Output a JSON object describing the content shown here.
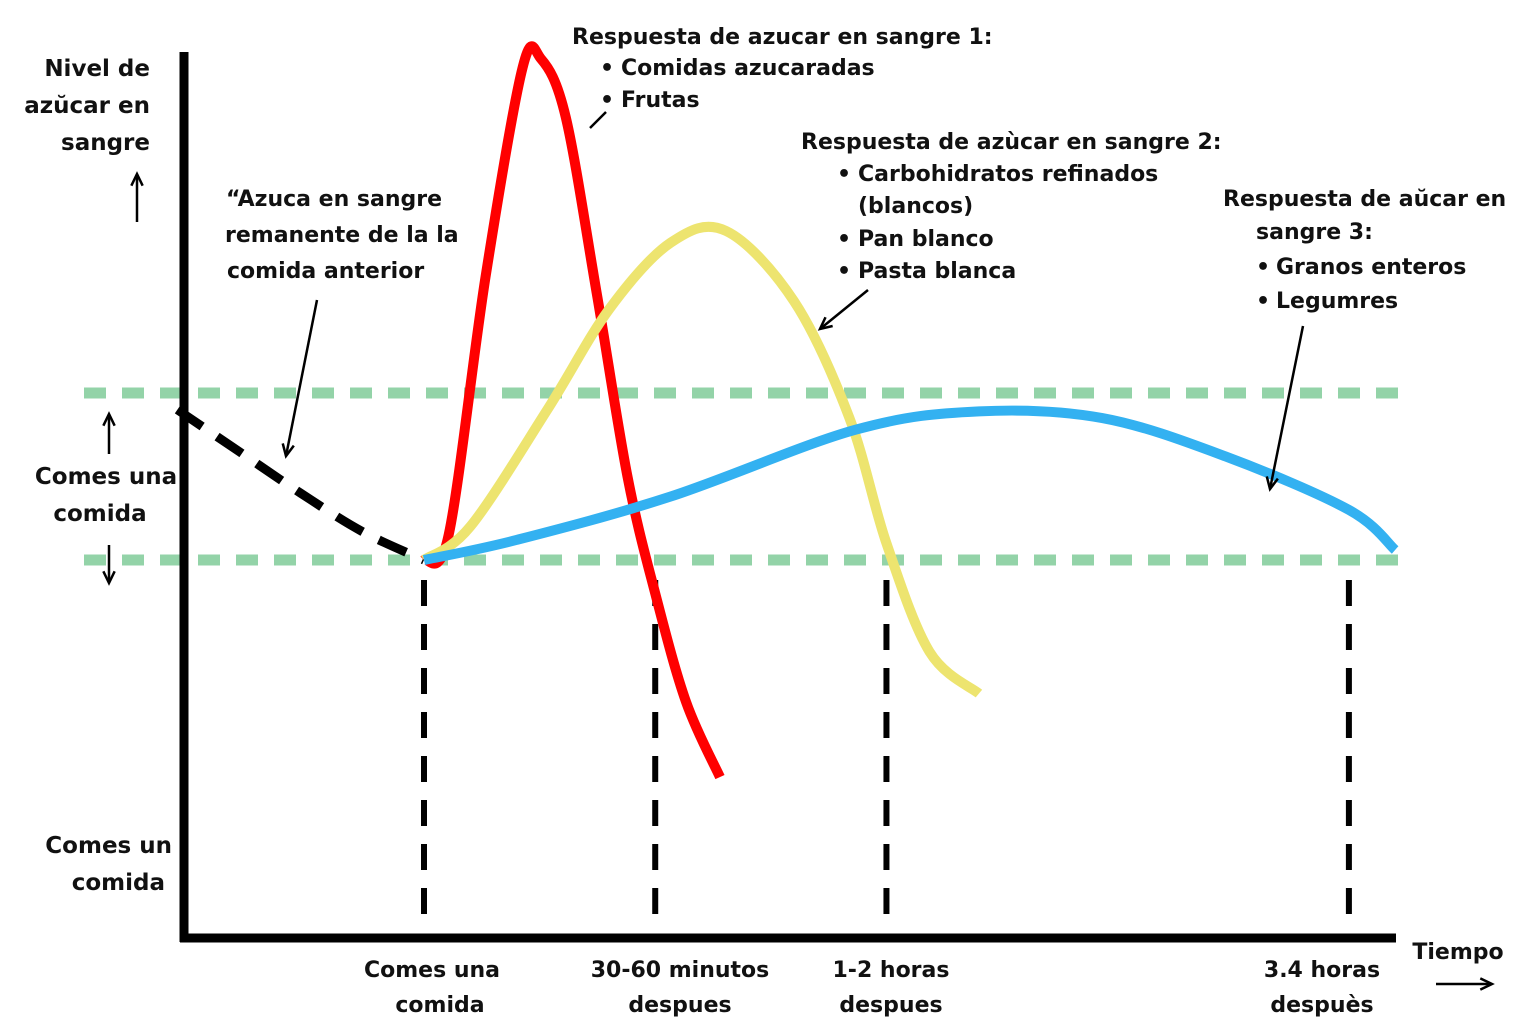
{
  "chart_data": {
    "type": "line",
    "title": "",
    "ylabel": [
      "Nivel de",
      "azŭcar en",
      "sangre"
    ],
    "xlabel": "Tiempo",
    "x_ticks": [
      {
        "x": 0,
        "lines": [
          "Comes una",
          "comida"
        ]
      },
      {
        "x": 0.75,
        "lines": [
          "30-60 minutos",
          "despues"
        ]
      },
      {
        "x": 1.5,
        "lines": [
          "1-2 horas",
          "despues"
        ]
      },
      {
        "x": 3,
        "lines": [
          "3.4 horas",
          "despuès"
        ]
      }
    ],
    "xlim": [
      -0.8,
      3.15
    ],
    "ylim": [
      -1.2,
      3.0
    ],
    "normal_band": {
      "low": 0,
      "high": 1,
      "lines": [
        "Comes una",
        "comida"
      ]
    },
    "bottom_label": [
      "Comes un",
      "comida"
    ],
    "series": [
      {
        "name": "Azúcar remanente de la comida anterior",
        "color": "#000000",
        "style": "dashed",
        "x": [
          -0.8,
          -0.6,
          -0.4,
          -0.2,
          0
        ],
        "y": [
          0.9,
          0.65,
          0.4,
          0.17,
          0
        ]
      },
      {
        "name": "Respuesta de azucar en sangre 1",
        "color": "#ff0000",
        "style": "solid",
        "x": [
          0,
          0.08,
          0.2,
          0.32,
          0.38,
          0.46,
          0.56,
          0.66,
          0.75,
          0.85,
          0.96
        ],
        "y": [
          0,
          0.15,
          1.7,
          2.95,
          3.0,
          2.65,
          1.6,
          0.5,
          -0.2,
          -0.85,
          -1.3
        ]
      },
      {
        "name": "Respuesta de azúcar en sangre 2",
        "color": "#ede46f",
        "style": "solid",
        "x": [
          0,
          0.15,
          0.4,
          0.6,
          0.8,
          0.98,
          1.2,
          1.38,
          1.5,
          1.64,
          1.8
        ],
        "y": [
          0,
          0.2,
          0.9,
          1.5,
          1.9,
          1.97,
          1.55,
          0.85,
          0.1,
          -0.55,
          -0.8
        ]
      },
      {
        "name": "Respuesta de aŭcar en sangre 3",
        "color": "#33b1f1",
        "style": "solid",
        "x": [
          0,
          0.3,
          0.8,
          1.4,
          1.8,
          2.2,
          2.6,
          3.0,
          3.15
        ],
        "y": [
          0,
          0.12,
          0.38,
          0.78,
          0.89,
          0.85,
          0.62,
          0.3,
          0.06
        ]
      }
    ],
    "annotations": [
      {
        "id": "remanente",
        "lines": [
          "“Azuca en sangre",
          "remanente de la la",
          "comida anterior"
        ]
      },
      {
        "id": "resp1",
        "title": "Respuesta de azucar en sangre 1:",
        "bullets": [
          "Comidas azucaradas",
          "Frutas"
        ]
      },
      {
        "id": "resp2",
        "title": "Respuesta de azùcar en sangre 2:",
        "bullets": [
          "Carbohidratos refinados",
          "(blancos)",
          "Pan blanco",
          "Pasta blanca"
        ]
      },
      {
        "id": "resp3",
        "title": [
          "Respuesta de aŭcar en",
          "sangre 3:"
        ],
        "bullets": [
          "Granos enteros",
          "Legumres"
        ]
      }
    ],
    "grid": false,
    "legend": "none"
  }
}
